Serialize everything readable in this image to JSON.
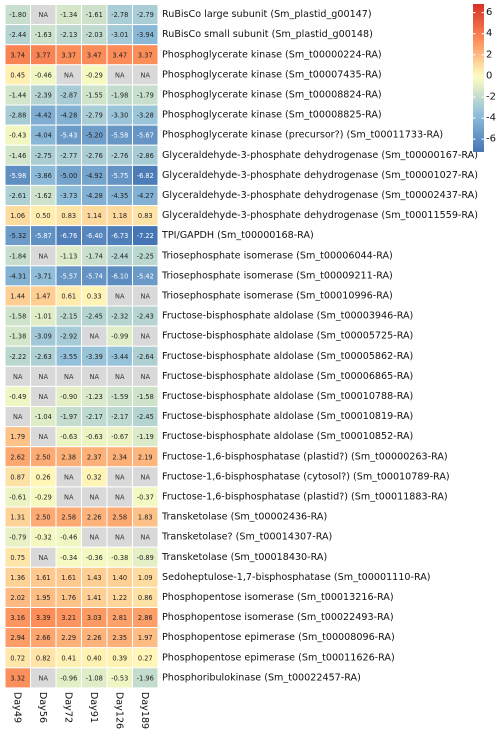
{
  "chart_data": {
    "type": "heatmap",
    "columns": [
      "Day49",
      "Day56",
      "Day72",
      "Day91",
      "Day126",
      "Day189"
    ],
    "rows": [
      "RuBisCo large subunit (Sm_plastid_g00147)",
      "RuBisCo small subunit (Sm_plastid_g00148)",
      "Phosphoglycerate kinase (Sm_t00000224-RA)",
      "Phosphoglycerate kinase (Sm_t00007435-RA)",
      "Phosphoglycerate kinase (Sm_t00008824-RA)",
      "Phosphoglycerate kinase (Sm_t00008825-RA)",
      "Phosphoglycerate kinase (precursor?) (Sm_t00011733-RA)",
      "Glyceraldehyde-3-phosphate dehydrogenase (Sm_t00000167-RA)",
      "Glyceraldehyde-3-phosphate dehydrogenase (Sm_t00001027-RA)",
      "Glyceraldehyde-3-phosphate dehydrogenase (Sm_t00002437-RA)",
      "Glyceraldehyde-3-phosphate dehydrogenase (Sm_t00011559-RA)",
      "TPI/GAPDH (Sm_t00000168-RA)",
      "Triosephosphate isomerase (Sm_t00006044-RA)",
      "Triosephosphate isomerase (Sm_t00009211-RA)",
      "Triosephosphate isomerase (Sm_t00010996-RA)",
      "Fructose-bisphosphate aldolase (Sm_t00003946-RA)",
      "Fructose-bisphosphate aldolase (Sm_t00005725-RA)",
      "Fructose-bisphosphate aldolase (Sm_t00005862-RA)",
      "Fructose-bisphosphate aldolase (Sm_t00006865-RA)",
      "Fructose-bisphosphate aldolase (Sm_t00010788-RA)",
      "Fructose-bisphosphate aldolase (Sm_t00010819-RA)",
      "Fructose-bisphosphate aldolase (Sm_t00010852-RA)",
      "Fructose-1,6-bisphosphatase (plastid?) (Sm_t00000263-RA)",
      "Fructose-1,6-bisphosphatase (cytosol?) (Sm_t00010789-RA)",
      "Fructose-1,6-bisphosphatase (plastid?) (Sm_t00011883-RA)",
      "Transketolase (Sm_t00002436-RA)",
      "Transketolase? (Sm_t00014307-RA)",
      "Transketolase (Sm_t00018430-RA)",
      "Sedoheptulose-1,7-bisphosphatase (Sm_t00001110-RA)",
      "Phosphopentose isomerase (Sm_t00013216-RA)",
      "Phosphopentose isomerase (Sm_t00022493-RA)",
      "Phosphopentose epimerase (Sm_t00008096-RA)",
      "Phosphopentose epimerase (Sm_t00011626-RA)",
      "Phosphoribulokinase (Sm_t00022457-RA)"
    ],
    "values": [
      [
        -1.8,
        null,
        -1.34,
        -1.61,
        -2.78,
        -2.79
      ],
      [
        -2.44,
        -1.63,
        -2.13,
        -2.03,
        -3.01,
        -3.94
      ],
      [
        3.74,
        3.77,
        3.37,
        3.47,
        3.47,
        3.37
      ],
      [
        0.45,
        -0.46,
        null,
        -0.29,
        null,
        null
      ],
      [
        -1.44,
        -2.39,
        -2.87,
        -1.55,
        -1.98,
        -1.79
      ],
      [
        -2.88,
        -4.42,
        -4.28,
        -2.79,
        -3.3,
        -3.28
      ],
      [
        -0.43,
        -4.04,
        -5.43,
        -5.2,
        -5.58,
        -5.67
      ],
      [
        -1.46,
        -2.75,
        -2.77,
        -2.76,
        -2.76,
        -2.86
      ],
      [
        -5.98,
        -3.86,
        -5.0,
        -4.92,
        -5.75,
        -6.82
      ],
      [
        -2.61,
        -1.62,
        -3.73,
        -4.28,
        -4.35,
        -4.27
      ],
      [
        1.06,
        0.5,
        0.83,
        1.14,
        1.18,
        0.83
      ],
      [
        -5.32,
        -5.87,
        -6.76,
        -6.4,
        -6.73,
        -7.22
      ],
      [
        -1.84,
        null,
        -1.13,
        -1.74,
        -2.44,
        -2.25
      ],
      [
        -4.31,
        -3.71,
        -5.57,
        -5.74,
        -6.1,
        -5.42
      ],
      [
        1.44,
        1.47,
        0.61,
        0.33,
        null,
        null
      ],
      [
        -1.58,
        -1.01,
        -2.15,
        -2.45,
        -2.32,
        -2.43
      ],
      [
        -1.38,
        -3.09,
        -2.92,
        null,
        -0.99,
        null
      ],
      [
        -2.22,
        -2.63,
        -3.55,
        -3.39,
        -3.44,
        -2.64
      ],
      [
        null,
        null,
        null,
        null,
        null,
        null
      ],
      [
        -0.49,
        null,
        -0.9,
        -1.23,
        -1.59,
        -1.58
      ],
      [
        null,
        -1.04,
        -1.97,
        -2.17,
        -2.17,
        -2.45
      ],
      [
        1.79,
        null,
        -0.63,
        -0.63,
        -0.67,
        -1.19
      ],
      [
        2.62,
        2.5,
        2.38,
        2.37,
        2.34,
        2.19
      ],
      [
        0.87,
        0.26,
        null,
        0.32,
        null,
        null
      ],
      [
        -0.61,
        -0.29,
        null,
        null,
        null,
        -0.37
      ],
      [
        1.31,
        2.5,
        2.58,
        2.26,
        2.58,
        1.83
      ],
      [
        -0.79,
        -0.32,
        -0.46,
        null,
        null,
        null
      ],
      [
        0.75,
        null,
        -0.34,
        -0.36,
        -0.38,
        -0.89
      ],
      [
        1.36,
        1.61,
        1.61,
        1.43,
        1.4,
        1.09
      ],
      [
        2.02,
        1.95,
        1.76,
        1.41,
        1.22,
        0.86
      ],
      [
        3.16,
        3.39,
        3.21,
        3.03,
        2.81,
        2.86
      ],
      [
        2.94,
        2.66,
        2.29,
        2.26,
        2.35,
        1.97
      ],
      [
        0.72,
        0.82,
        0.41,
        0.4,
        0.39,
        0.27
      ],
      [
        3.32,
        null,
        -0.96,
        -1.08,
        -0.53,
        -1.96
      ]
    ],
    "na_label": "NA",
    "color_scale": {
      "type": "diverging",
      "low_color": "#4575b4",
      "mid_color": "#ffffbf",
      "high_color": "#d73027",
      "na_color": "#d9d9d9",
      "domain": [
        -7.22,
        0,
        6.82
      ]
    },
    "legend": {
      "position": "top-right",
      "ticks": [
        6,
        4,
        2,
        0,
        -2,
        -4,
        -6
      ]
    }
  }
}
